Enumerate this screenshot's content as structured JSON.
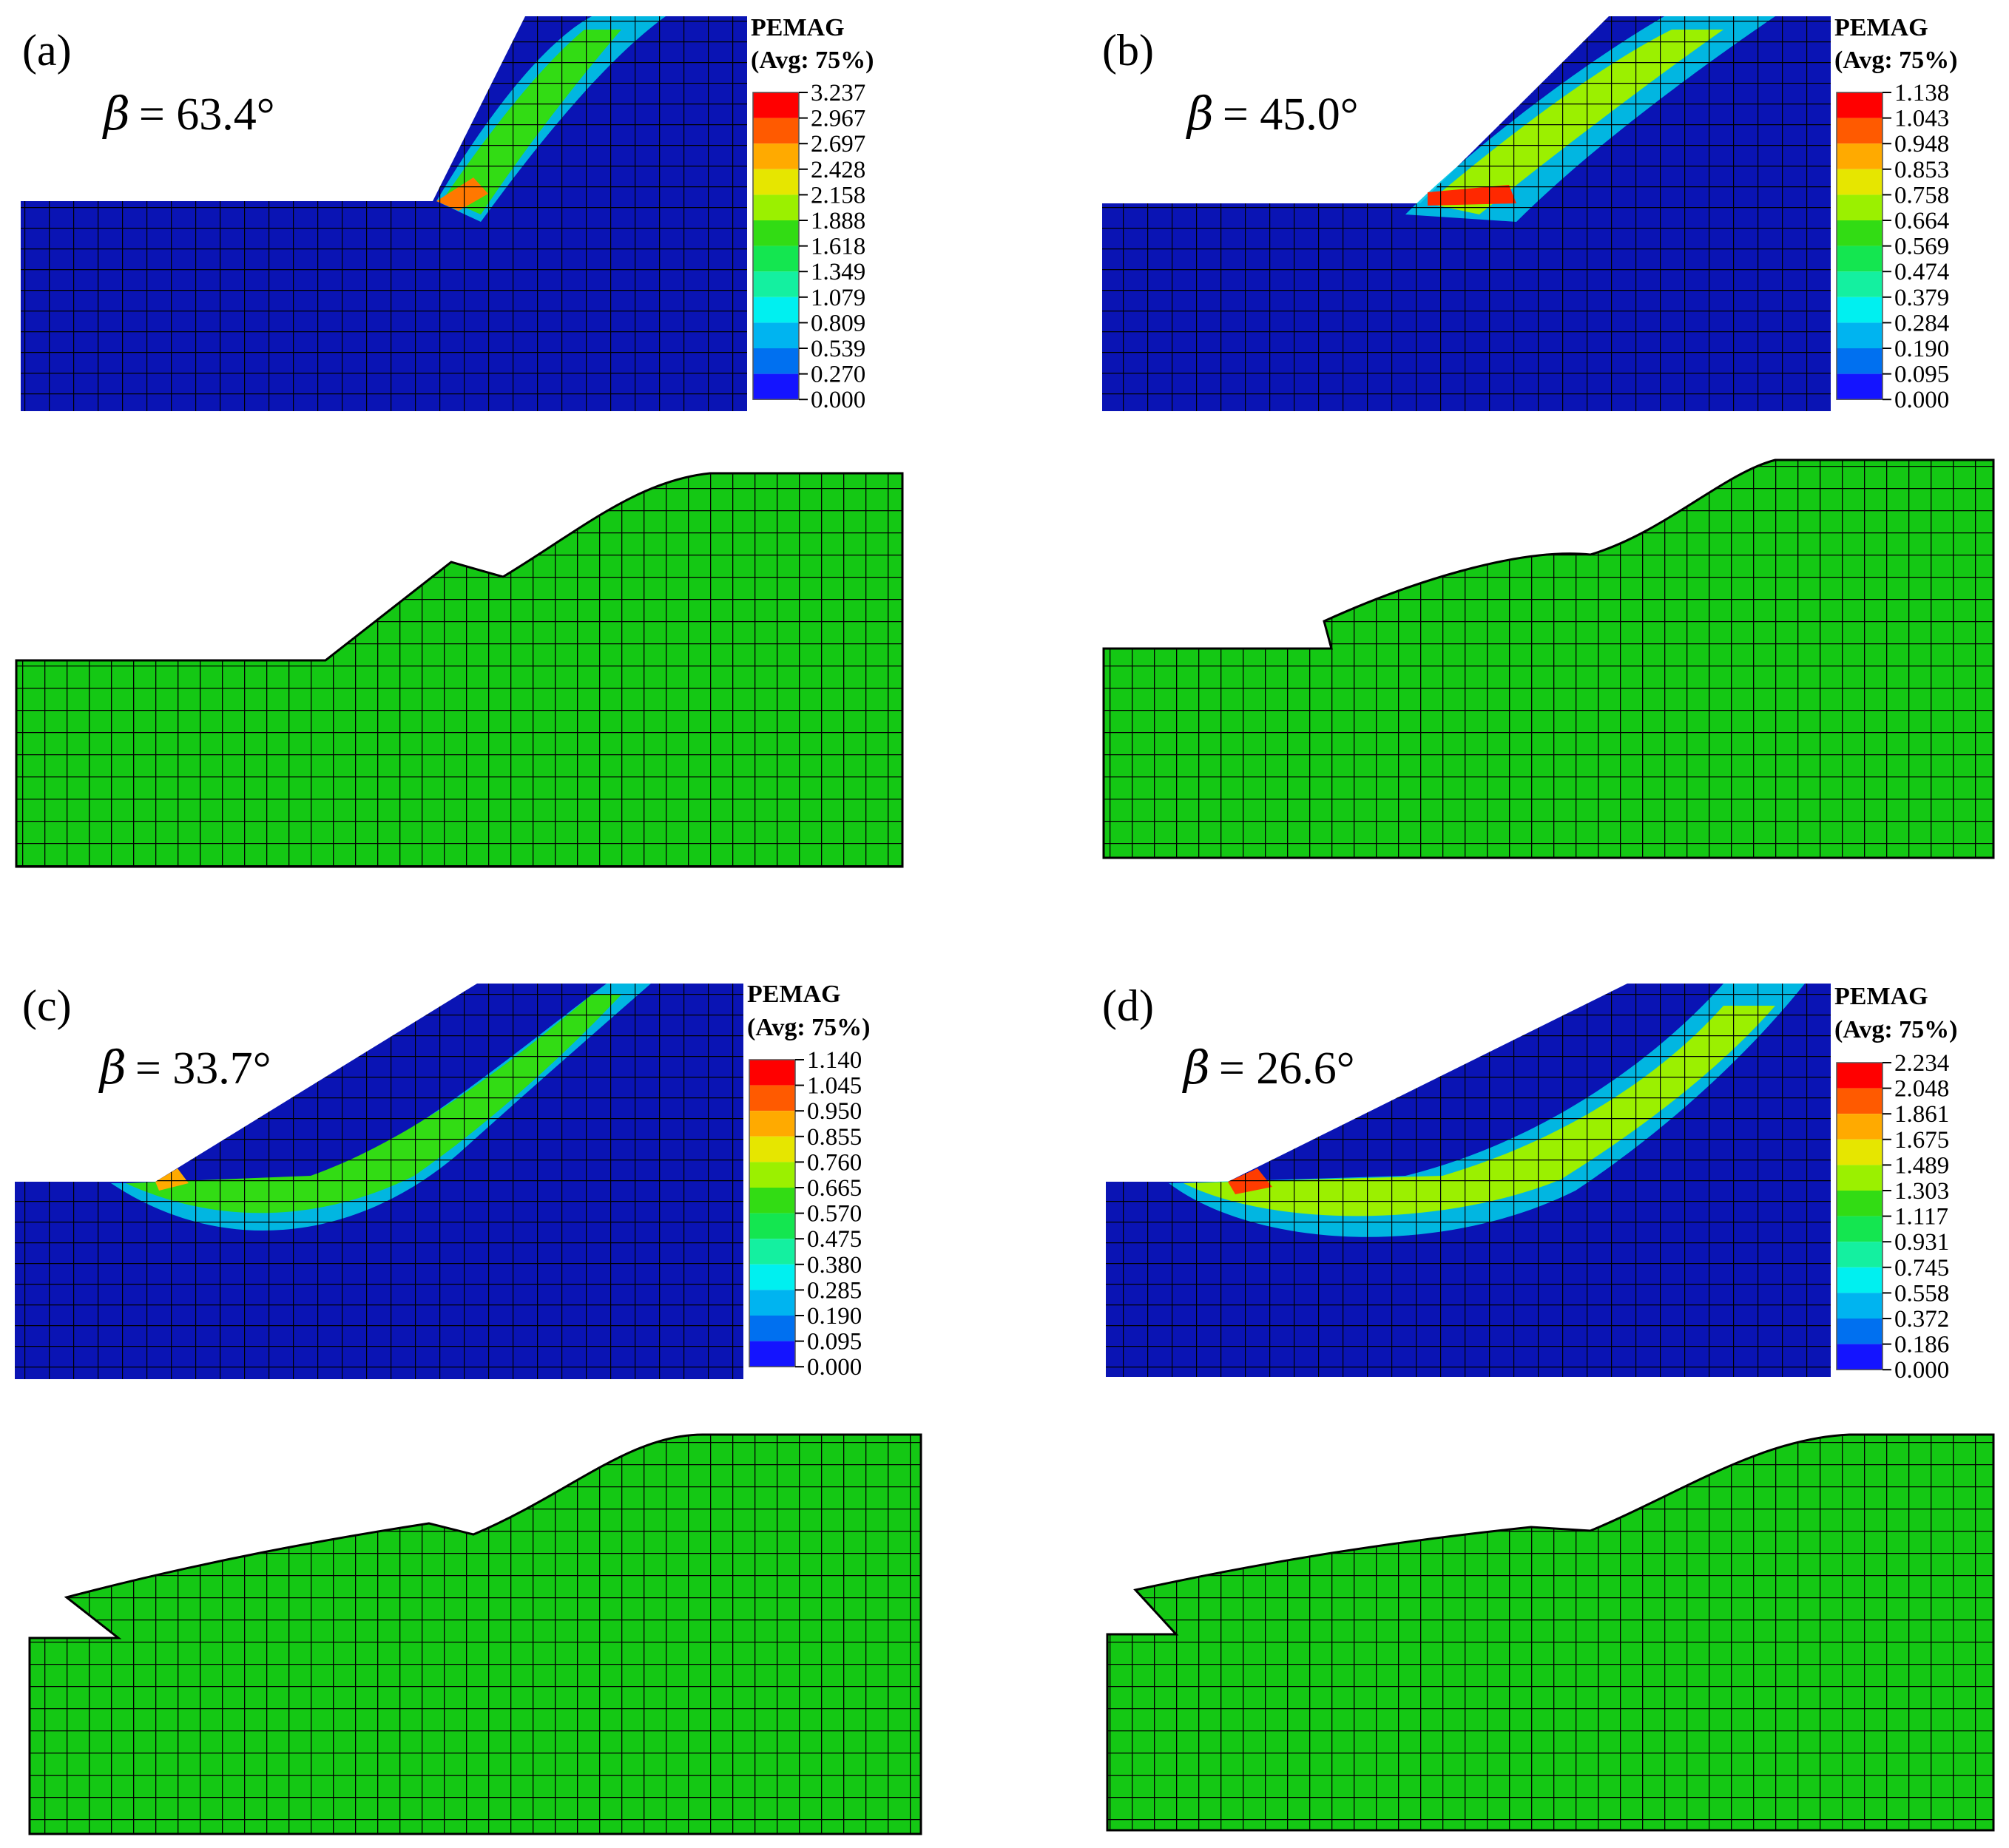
{
  "figure": {
    "panels": [
      {
        "id": "a",
        "label": "(a)",
        "beta_symbol": "β",
        "beta_value": "= 63.4°",
        "legend_title_1": "PEMAG",
        "legend_title_2": "(Avg: 75%)",
        "legend_values": [
          "3.237",
          "2.967",
          "2.697",
          "2.428",
          "2.158",
          "1.888",
          "1.618",
          "1.349",
          "1.079",
          "0.809",
          "0.539",
          "0.270",
          "0.000"
        ]
      },
      {
        "id": "b",
        "label": "(b)",
        "beta_symbol": "β",
        "beta_value": "= 45.0°",
        "legend_title_1": "PEMAG",
        "legend_title_2": "(Avg: 75%)",
        "legend_values": [
          "1.138",
          "1.043",
          "0.948",
          "0.853",
          "0.758",
          "0.664",
          "0.569",
          "0.474",
          "0.379",
          "0.284",
          "0.190",
          "0.095",
          "0.000"
        ]
      },
      {
        "id": "c",
        "label": "(c)",
        "beta_symbol": "β",
        "beta_value": "= 33.7°",
        "legend_title_1": "PEMAG",
        "legend_title_2": "(Avg: 75%)",
        "legend_values": [
          "1.140",
          "1.045",
          "0.950",
          "0.855",
          "0.760",
          "0.665",
          "0.570",
          "0.475",
          "0.380",
          "0.285",
          "0.190",
          "0.095",
          "0.000"
        ]
      },
      {
        "id": "d",
        "label": "(d)",
        "beta_symbol": "β",
        "beta_value": "= 26.6°",
        "legend_title_1": "PEMAG",
        "legend_title_2": "(Avg: 75%)",
        "legend_values": [
          "2.234",
          "2.048",
          "1.861",
          "1.675",
          "1.489",
          "1.303",
          "1.117",
          "0.931",
          "0.745",
          "0.558",
          "0.372",
          "0.186",
          "0.000"
        ]
      }
    ],
    "colors": {
      "mesh_blue": "#0a14b4",
      "mesh_green": "#14c814",
      "grid_line": "#000000",
      "legend_scale": [
        "#ff0000",
        "#ff5a00",
        "#ffaa00",
        "#e6e600",
        "#9bf000",
        "#32dc14",
        "#14e650",
        "#14f0a0",
        "#00f0f0",
        "#00b4f0",
        "#0070f0",
        "#1414ff"
      ]
    }
  }
}
